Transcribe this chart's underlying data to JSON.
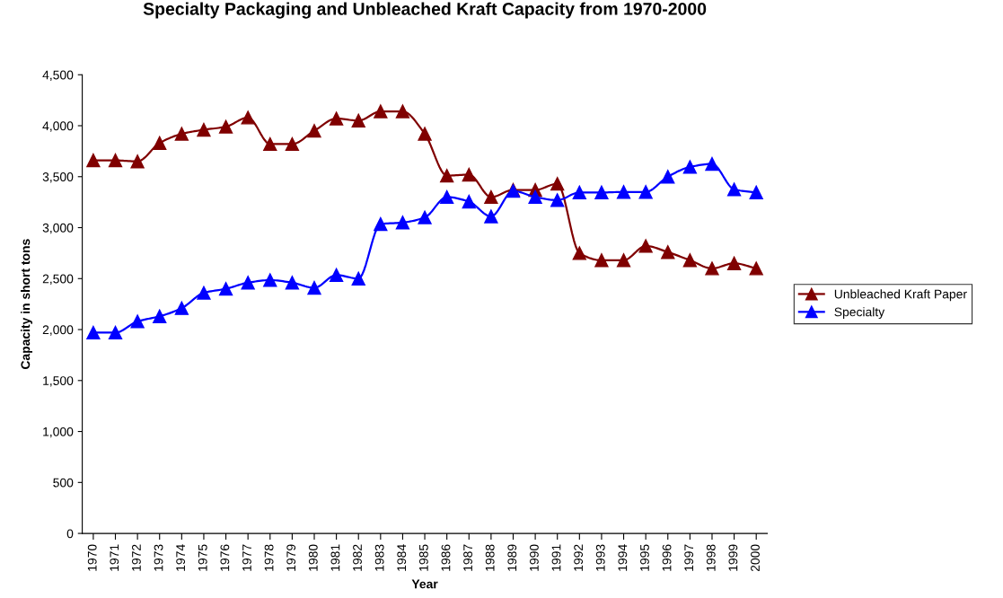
{
  "chart_data": {
    "type": "line",
    "title": "Specialty Packaging and Unbleached Kraft Capacity from 1970-2000",
    "xlabel": "Year",
    "ylabel": "Capacity in short tons",
    "categories": [
      "1970",
      "1971",
      "1972",
      "1973",
      "1974",
      "1975",
      "1976",
      "1977",
      "1978",
      "1979",
      "1980",
      "1981",
      "1982",
      "1983",
      "1984",
      "1985",
      "1986",
      "1987",
      "1988",
      "1989",
      "1990",
      "1991",
      "1992",
      "1993",
      "1994",
      "1995",
      "1996",
      "1997",
      "1998",
      "1999",
      "2000"
    ],
    "series": [
      {
        "name": "Unbleached Kraft Paper",
        "color": "#800000",
        "values": [
          3660,
          3660,
          3650,
          3830,
          3920,
          3960,
          3990,
          4080,
          3820,
          3820,
          3950,
          4070,
          4050,
          4140,
          4140,
          3920,
          3510,
          3520,
          3300,
          3370,
          3370,
          3430,
          2750,
          2680,
          2680,
          2820,
          2760,
          2680,
          2600,
          2650,
          2600
        ]
      },
      {
        "name": "Specialty",
        "color": "#0000ff",
        "values": [
          1970,
          1970,
          2080,
          2130,
          2210,
          2360,
          2400,
          2460,
          2485,
          2460,
          2410,
          2535,
          2500,
          3035,
          3050,
          3100,
          3300,
          3255,
          3110,
          3360,
          3300,
          3270,
          3345,
          3345,
          3350,
          3350,
          3500,
          3595,
          3625,
          3375,
          3345
        ]
      }
    ],
    "ylim": [
      0,
      4500
    ],
    "yticks": [
      0,
      500,
      {
        "value": 1000,
        "label": "1,000"
      },
      {
        "value": 1500,
        "label": "1,500"
      },
      {
        "value": 2000,
        "label": "2,000"
      },
      {
        "value": 2500,
        "label": "2,500"
      },
      {
        "value": 3000,
        "label": "3,000"
      },
      {
        "value": 3500,
        "label": "3,500"
      },
      {
        "value": 4000,
        "label": "4,000"
      },
      {
        "value": 4500,
        "label": "4,500"
      }
    ],
    "legend": "right",
    "marker": "triangle",
    "line_style": "solid",
    "grid": false
  }
}
